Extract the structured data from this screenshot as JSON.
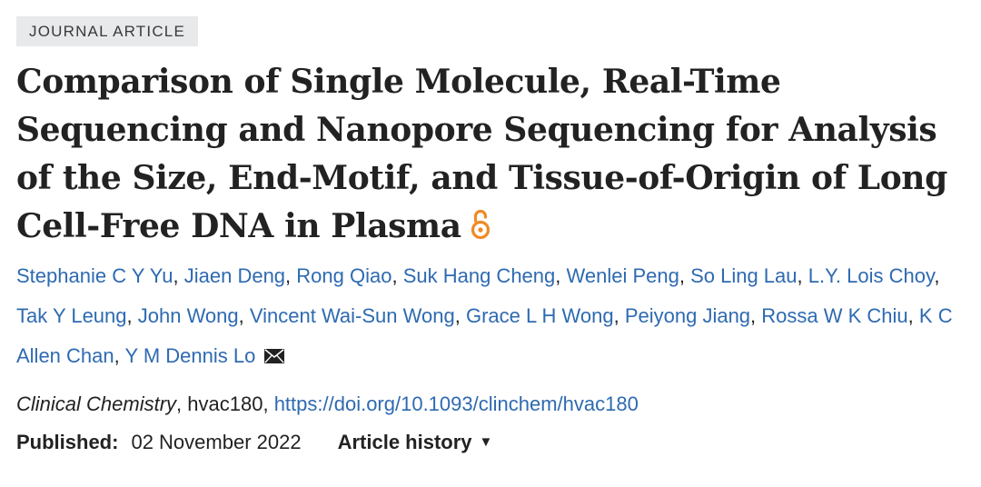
{
  "article_type": "JOURNAL ARTICLE",
  "title": "Comparison of Single Molecule, Real-Time Sequencing and Nanopore Sequencing for Analysis of the Size, End-Motif, and Tissue-of-Origin of Long Cell-Free DNA in Plasma",
  "authors": [
    "Stephanie C Y Yu",
    "Jiaen Deng",
    "Rong Qiao",
    "Suk Hang Cheng",
    "Wenlei Peng",
    "So Ling Lau",
    "L.Y. Lois Choy",
    "Tak Y Leung",
    "John Wong",
    "Vincent Wai-Sun Wong",
    "Grace L H Wong",
    "Peiyong Jiang",
    "Rossa W K Chiu",
    "K C Allen Chan",
    "Y M Dennis Lo"
  ],
  "author_separator": ", ",
  "citation": {
    "journal": "Clinical Chemistry",
    "article_id": ", hvac180, ",
    "doi_url": "https://doi.org/10.1093/clinchem/hvac180"
  },
  "published": {
    "label": "Published:",
    "date": "02 November 2022"
  },
  "history_label": "Article history",
  "icons": {
    "open_access": "open-access-lock-icon",
    "email": "envelope-icon",
    "dropdown": "caret-down-icon"
  },
  "colors": {
    "link": "#2e6ab1",
    "open_access": "#f08a24",
    "badge_bg": "#e8e9ea",
    "text": "#222222"
  }
}
